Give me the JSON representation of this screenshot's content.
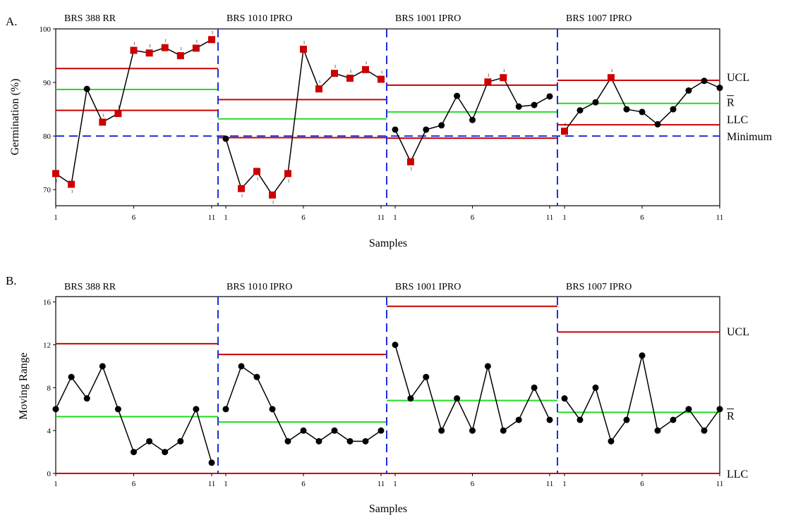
{
  "colors": {
    "limit": "#cc0000",
    "center": "#22dd22",
    "divider": "#1f2fdc",
    "minimum": "#1f2fdc",
    "point": "#000000",
    "flagged": "#cc0000"
  },
  "chart_data": [
    {
      "type": "line",
      "panel_label": "A.",
      "xlabel": "Samples",
      "ylabel": "Germination (%)",
      "ylim": [
        67,
        100
      ],
      "yticks": [
        70,
        80,
        90,
        100
      ],
      "xticks": [
        "1",
        "6",
        "11"
      ],
      "right_labels": {
        "ucl": "UCL",
        "center": "R",
        "lcl": "LLC",
        "minimum": "Minimum"
      },
      "minimum_line": 80,
      "groups": [
        {
          "name": "BRS 388 RR",
          "ucl": 92.6,
          "center": 88.7,
          "lcl": 84.8,
          "values": [
            73,
            71,
            88.8,
            82.6,
            84.2,
            96,
            95.5,
            96.5,
            95,
            96.4,
            98
          ],
          "flagged": [
            true,
            true,
            false,
            true,
            true,
            true,
            true,
            true,
            true,
            true,
            true
          ]
        },
        {
          "name": "BRS 1010 IPRO",
          "ucl": 86.8,
          "center": 83.2,
          "lcl": 79.7,
          "values": [
            79.5,
            70.2,
            73.4,
            69,
            73,
            96.2,
            88.8,
            91.7,
            90.8,
            92.4,
            90.6
          ],
          "flagged": [
            false,
            true,
            true,
            true,
            true,
            true,
            true,
            true,
            true,
            true,
            true
          ]
        },
        {
          "name": "BRS 1001 IPRO",
          "ucl": 89.5,
          "center": 84.5,
          "lcl": 79.6,
          "values": [
            81.2,
            75.2,
            81.2,
            82,
            87.5,
            83,
            90.1,
            90.9,
            85.5,
            85.8,
            87.4
          ],
          "flagged": [
            false,
            true,
            false,
            false,
            false,
            false,
            true,
            true,
            false,
            false,
            false
          ]
        },
        {
          "name": "BRS 1007 IPRO",
          "ucl": 90.4,
          "center": 86.1,
          "lcl": 82.1,
          "values": [
            80.9,
            84.8,
            86.3,
            90.9,
            85,
            84.5,
            82.2,
            85,
            88.5,
            90.3,
            89
          ],
          "flagged": [
            true,
            false,
            false,
            true,
            false,
            false,
            false,
            false,
            false,
            false,
            false
          ]
        }
      ]
    },
    {
      "type": "line",
      "panel_label": "B.",
      "xlabel": "Samples",
      "ylabel": "Moving Range",
      "ylim": [
        0,
        16.5
      ],
      "yticks": [
        0,
        4,
        8,
        12,
        16
      ],
      "xticks": [
        "1",
        "6",
        "11"
      ],
      "right_labels": {
        "ucl": "UCL",
        "center": "R",
        "lcl": "LLC"
      },
      "groups": [
        {
          "name": "BRS 388 RR",
          "ucl": 12.1,
          "center": 5.3,
          "lcl": 0,
          "values": [
            6,
            9,
            7,
            10,
            6,
            2,
            3,
            2,
            3,
            6,
            1
          ]
        },
        {
          "name": "BRS 1010 IPRO",
          "ucl": 11.1,
          "center": 4.8,
          "lcl": 0,
          "values": [
            6,
            10,
            9,
            6,
            3,
            4,
            3,
            4,
            3,
            3,
            4
          ]
        },
        {
          "name": "BRS 1001 IPRO",
          "ucl": 15.6,
          "center": 6.8,
          "lcl": 0,
          "values": [
            12,
            7,
            9,
            4,
            7,
            4,
            10,
            4,
            5,
            8,
            5
          ]
        },
        {
          "name": "BRS 1007 IPRO",
          "ucl": 13.2,
          "center": 5.7,
          "lcl": 0,
          "values": [
            7,
            5,
            8,
            3,
            5,
            11,
            4,
            5,
            6,
            4,
            6
          ]
        }
      ]
    }
  ]
}
